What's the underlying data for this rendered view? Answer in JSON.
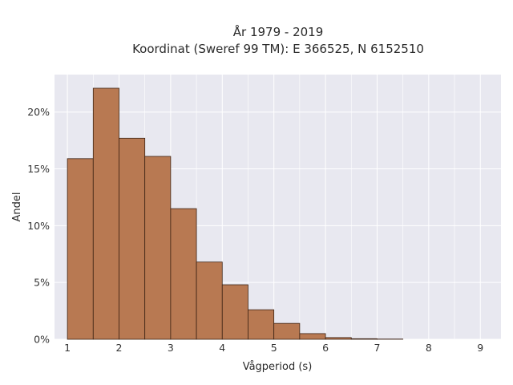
{
  "chart_data": {
    "type": "bar",
    "title_line1": "År 1979 - 2019",
    "title_line2": "Koordinat (Sweref 99 TM): E 366525, N 6152510",
    "xlabel": "Vågperiod (s)",
    "ylabel": "Andel",
    "xlim": [
      0.75,
      9.4
    ],
    "ylim": [
      0,
      23.3
    ],
    "x_ticks": [
      1,
      2,
      3,
      4,
      5,
      6,
      7,
      8,
      9
    ],
    "x_tick_labels": [
      "1",
      "2",
      "3",
      "4",
      "5",
      "6",
      "7",
      "8",
      "9"
    ],
    "y_ticks": [
      0,
      5,
      10,
      15,
      20
    ],
    "y_tick_labels": [
      "0%",
      "5%",
      "10%",
      "15%",
      "20%"
    ],
    "bin_edges": [
      1.0,
      1.5,
      2.0,
      2.5,
      3.0,
      3.5,
      4.0,
      4.5,
      5.0,
      5.5,
      6.0,
      6.5,
      7.0,
      7.5
    ],
    "values": [
      15.9,
      22.1,
      17.7,
      16.1,
      11.5,
      6.8,
      4.8,
      2.6,
      1.4,
      0.5,
      0.15,
      0.05,
      0.02
    ],
    "value_unit": "%",
    "grid": true,
    "colors": {
      "bar_fill": "#b87952",
      "bar_stroke": "#3d2314",
      "plot_background": "#e8e8f0",
      "grid": "#ffffff"
    }
  }
}
